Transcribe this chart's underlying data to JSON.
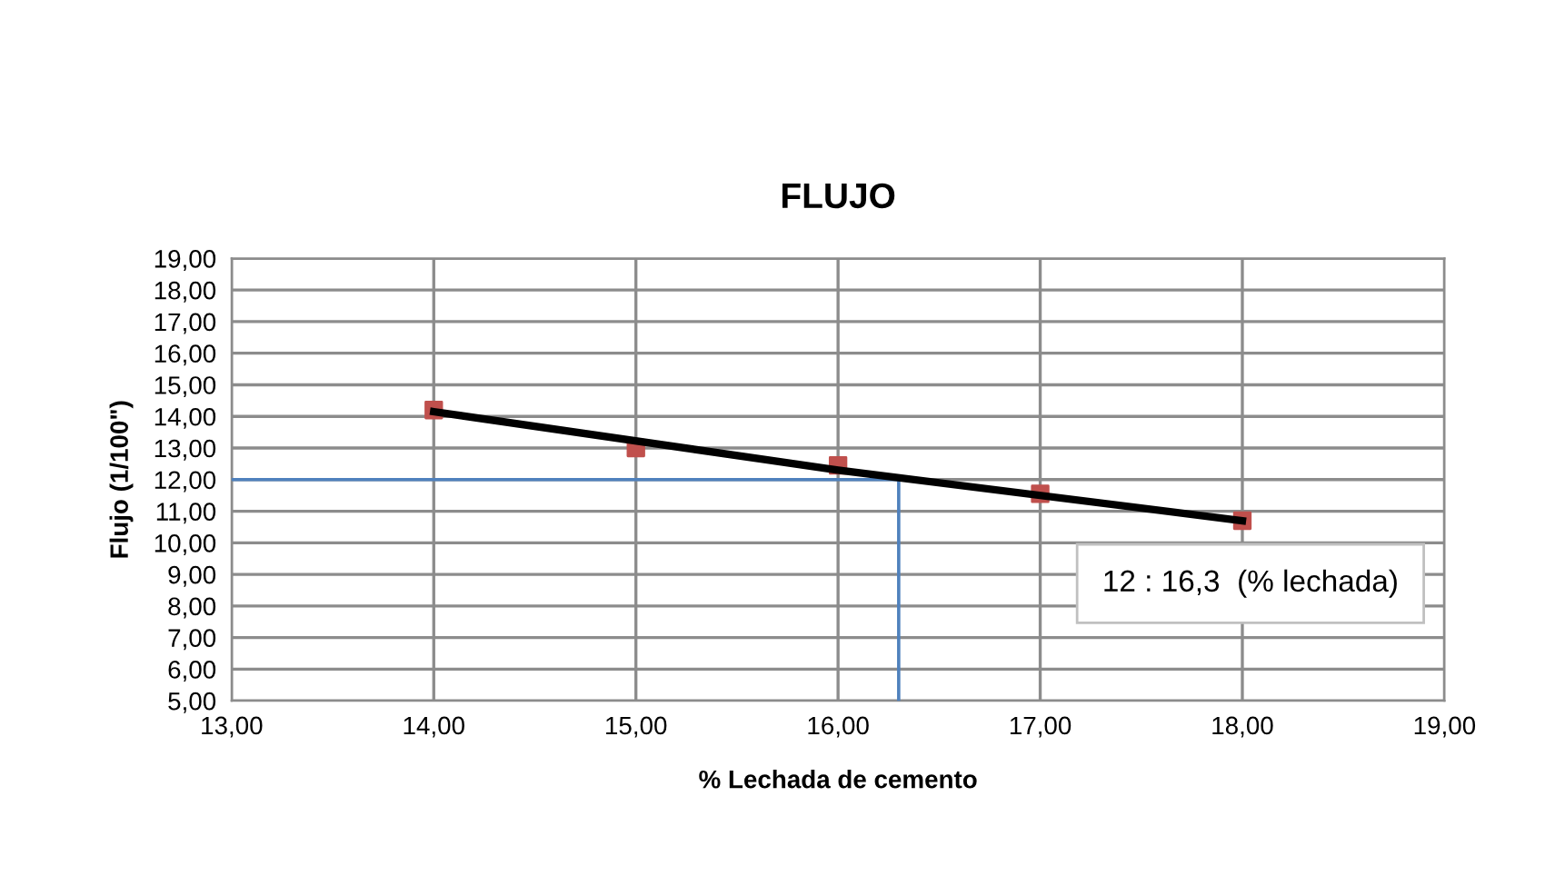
{
  "chart_data": {
    "type": "scatter",
    "title": "FLUJO",
    "xlabel": "% Lechada de cemento",
    "ylabel": "Flujo (1/100\")",
    "xlim": [
      13,
      19
    ],
    "ylim": [
      5,
      19
    ],
    "xticks": [
      {
        "value": 13,
        "label": "13,00"
      },
      {
        "value": 14,
        "label": "14,00"
      },
      {
        "value": 15,
        "label": "15,00"
      },
      {
        "value": 16,
        "label": "16,00"
      },
      {
        "value": 17,
        "label": "17,00"
      },
      {
        "value": 18,
        "label": "18,00"
      },
      {
        "value": 19,
        "label": "19,00"
      }
    ],
    "yticks": [
      {
        "value": 5,
        "label": "5,00"
      },
      {
        "value": 6,
        "label": "6,00"
      },
      {
        "value": 7,
        "label": "7,00"
      },
      {
        "value": 8,
        "label": "8,00"
      },
      {
        "value": 9,
        "label": "9,00"
      },
      {
        "value": 10,
        "label": "10,00"
      },
      {
        "value": 11,
        "label": "11,00"
      },
      {
        "value": 12,
        "label": "12,00"
      },
      {
        "value": 13,
        "label": "13,00"
      },
      {
        "value": 14,
        "label": "14,00"
      },
      {
        "value": 15,
        "label": "15,00"
      },
      {
        "value": 16,
        "label": "16,00"
      },
      {
        "value": 17,
        "label": "17,00"
      },
      {
        "value": 18,
        "label": "18,00"
      },
      {
        "value": 19,
        "label": "19,00"
      }
    ],
    "grid": true,
    "legend": false,
    "series": [
      {
        "type": "line",
        "color": "#4f81bd",
        "x": [
          13,
          16.3,
          16.3
        ],
        "values": [
          12,
          12,
          5
        ],
        "marker": "none"
      },
      {
        "type": "line",
        "color": "#000000",
        "x": [
          14,
          16,
          18
        ],
        "values": [
          14.15,
          12.3,
          10.7
        ],
        "marker": "none"
      },
      {
        "color": "#c0504d",
        "x": [
          14,
          15,
          16,
          17,
          18
        ],
        "values": [
          14.2,
          13.0,
          12.45,
          11.55,
          10.7
        ],
        "marker": "square"
      }
    ],
    "annotations": [
      "12 : 16,3  (% lechada)"
    ]
  }
}
